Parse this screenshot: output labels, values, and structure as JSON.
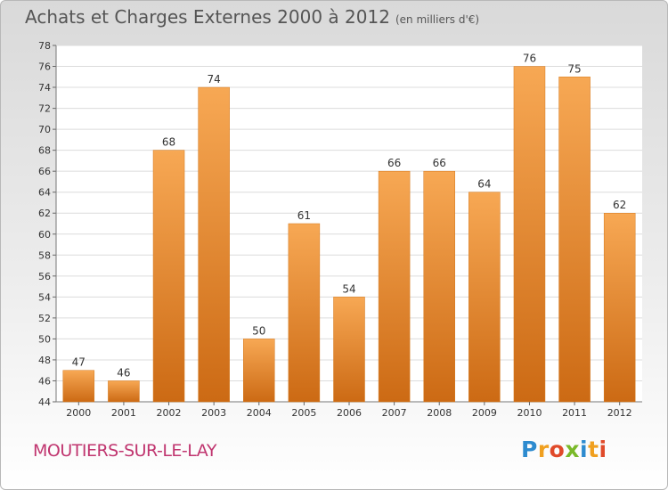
{
  "header": {
    "title": "Achats et Charges Externes 2000 à 2012",
    "subtitle": "(en milliers d'€)"
  },
  "footer": {
    "town": "MOUTIERS-SUR-LE-LAY",
    "logo": "Proxiti"
  },
  "colors": {
    "bar_light": "#f7a854",
    "bar_dark": "#cc6a14",
    "town_text": "#c0356f"
  },
  "chart_data": {
    "type": "bar",
    "title": "Achats et Charges Externes 2000 à 2012",
    "subtitle": "(en milliers d'€)",
    "categories": [
      "2000",
      "2001",
      "2002",
      "2003",
      "2004",
      "2005",
      "2006",
      "2007",
      "2008",
      "2009",
      "2010",
      "2011",
      "2012"
    ],
    "values": [
      47,
      46,
      68,
      74,
      50,
      61,
      54,
      66,
      66,
      64,
      76,
      75,
      62
    ],
    "ylim": [
      44,
      78
    ],
    "yticks": [
      44,
      46,
      48,
      50,
      52,
      54,
      56,
      58,
      60,
      62,
      64,
      66,
      68,
      70,
      72,
      74,
      76,
      78
    ],
    "grid": true,
    "data_labels": true
  }
}
